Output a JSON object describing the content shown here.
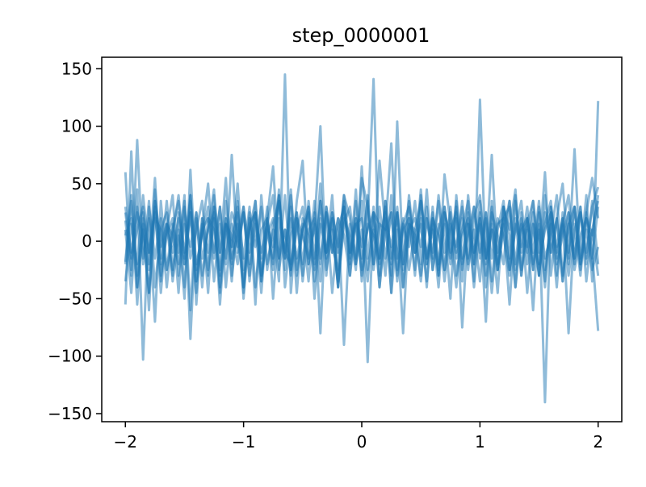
{
  "chart_data": {
    "type": "line",
    "title": "step_0000001",
    "xlabel": "",
    "ylabel": "",
    "xlim": [
      -2.2,
      2.2
    ],
    "ylim": [
      -157,
      160
    ],
    "xticks": [
      -2,
      -1,
      0,
      1,
      2
    ],
    "xtick_labels": [
      "−2",
      "−1",
      "0",
      "1",
      "2"
    ],
    "yticks": [
      -150,
      -100,
      -50,
      0,
      50,
      100,
      150
    ],
    "ytick_labels": [
      "−150",
      "−100",
      "−50",
      "0",
      "50",
      "100",
      "150"
    ],
    "grid": false,
    "legend": "none",
    "line_color": "#1f77b4",
    "line_opacity": 0.5,
    "x": [
      -2.0,
      -1.95,
      -1.9,
      -1.85,
      -1.8,
      -1.75,
      -1.7,
      -1.65,
      -1.6,
      -1.55,
      -1.5,
      -1.45,
      -1.4,
      -1.35,
      -1.3,
      -1.25,
      -1.2,
      -1.15,
      -1.1,
      -1.05,
      -1.0,
      -0.95,
      -0.9,
      -0.85,
      -0.8,
      -0.75,
      -0.7,
      -0.65,
      -0.6,
      -0.55,
      -0.5,
      -0.45,
      -0.4,
      -0.35,
      -0.3,
      -0.25,
      -0.2,
      -0.15,
      -0.1,
      -0.05,
      0.0,
      0.05,
      0.1,
      0.15,
      0.2,
      0.25,
      0.3,
      0.35,
      0.4,
      0.45,
      0.5,
      0.55,
      0.6,
      0.65,
      0.7,
      0.75,
      0.8,
      0.85,
      0.9,
      0.95,
      1.0,
      1.05,
      1.1,
      1.15,
      1.2,
      1.25,
      1.3,
      1.35,
      1.4,
      1.45,
      1.5,
      1.55,
      1.6,
      1.65,
      1.7,
      1.75,
      1.8,
      1.85,
      1.9,
      1.95,
      2.0
    ],
    "series": [
      {
        "values": [
          60,
          -30,
          88,
          -20,
          35,
          -40,
          10,
          25,
          -35,
          5,
          -20,
          40,
          -55,
          20,
          -10,
          30,
          -45,
          15,
          -5,
          50,
          -25,
          10,
          35,
          -30,
          20,
          -15,
          45,
          -40,
          5,
          25,
          -20,
          30,
          -50,
          15,
          -10,
          40,
          -35,
          20,
          5,
          -25,
          65,
          -15,
          30,
          -40,
          10,
          25,
          -30,
          15,
          -5,
          35,
          -20,
          45,
          -25,
          10,
          30,
          -15,
          20,
          -35,
          40,
          -10,
          15,
          -30,
          25,
          5,
          -20,
          35,
          -40,
          10,
          20,
          -25,
          30,
          -15,
          5,
          40,
          -30,
          15,
          -20,
          25,
          -10,
          30,
          47
        ]
      },
      {
        "values": [
          -55,
          78,
          -40,
          25,
          -60,
          45,
          -15,
          35,
          -25,
          10,
          -50,
          62,
          -35,
          20,
          -45,
          30,
          -10,
          55,
          -30,
          15,
          -40,
          25,
          -55,
          40,
          -20,
          10,
          -35,
          145,
          -45,
          20,
          -30,
          35,
          -15,
          50,
          -25,
          10,
          -40,
          30,
          -20,
          45,
          -35,
          15,
          141,
          -30,
          25,
          -45,
          104,
          -20,
          35,
          -10,
          20,
          -40,
          30,
          -25,
          15,
          -50,
          40,
          -15,
          25,
          -35,
          123,
          -20,
          10,
          -45,
          30,
          -15,
          40,
          -30,
          20,
          -10,
          35,
          -25,
          15,
          -40,
          25,
          -20,
          30,
          -15,
          40,
          -35,
          122
        ]
      },
      {
        "values": [
          18,
          -25,
          45,
          -103,
          30,
          -15,
          20,
          -40,
          10,
          35,
          -20,
          25,
          -45,
          15,
          -30,
          40,
          -10,
          20,
          -35,
          25,
          -15,
          30,
          -40,
          10,
          20,
          -25,
          35,
          -15,
          45,
          -30,
          10,
          25,
          -20,
          35,
          -15,
          20,
          -40,
          30,
          -10,
          15,
          -25,
          40,
          -20,
          30,
          -15,
          25,
          -35,
          10,
          20,
          -30,
          40,
          -15,
          25,
          -20,
          30,
          -10,
          35,
          -25,
          15,
          -40,
          20,
          -15,
          30,
          -25,
          10,
          35,
          -20,
          25,
          -45,
          15,
          -30,
          40,
          -10,
          20,
          -35,
          25,
          -15,
          30,
          -20,
          10,
          35
        ]
      },
      {
        "values": [
          -18,
          40,
          -55,
          20,
          -10,
          30,
          -45,
          15,
          5,
          -20,
          35,
          -60,
          25,
          -15,
          10,
          45,
          -30,
          20,
          -5,
          30,
          -50,
          15,
          25,
          -35,
          10,
          -20,
          40,
          -15,
          30,
          -45,
          20,
          5,
          -25,
          35,
          -10,
          20,
          -40,
          15,
          30,
          -20,
          10,
          -35,
          25,
          15,
          -30,
          40,
          -15,
          20,
          -25,
          10,
          35,
          -20,
          15,
          -30,
          25,
          5,
          -40,
          20,
          -15,
          30,
          -10,
          25,
          -35,
          15,
          20,
          -25,
          10,
          35,
          -20,
          15,
          -30,
          25,
          -10,
          20,
          -35,
          15,
          30,
          -20,
          10,
          -25,
          -5
        ]
      },
      {
        "values": [
          30,
          -10,
          25,
          5,
          -45,
          35,
          -20,
          10,
          40,
          -30,
          15,
          -5,
          25,
          -40,
          20,
          10,
          -25,
          35,
          -15,
          5,
          30,
          -35,
          20,
          -10,
          15,
          40,
          -25,
          10,
          -30,
          20,
          5,
          -15,
          35,
          -20,
          25,
          -45,
          10,
          30,
          -15,
          20,
          -5,
          35,
          -25,
          15,
          10,
          -30,
          25,
          -20,
          40,
          -10,
          15,
          -35,
          20,
          5,
          -25,
          30,
          -15,
          10,
          35,
          -20,
          25,
          -40,
          15,
          -10,
          20,
          30,
          -25,
          15,
          -5,
          35,
          -20,
          10,
          25,
          -30,
          15,
          -10,
          30,
          -25,
          20,
          5,
          40
        ]
      },
      {
        "values": [
          -35,
          15,
          -20,
          40,
          -10,
          25,
          -30,
          5,
          20,
          -45,
          30,
          -15,
          10,
          35,
          -25,
          20,
          -40,
          15,
          5,
          -20,
          30,
          -10,
          25,
          -35,
          15,
          -5,
          40,
          -25,
          20,
          -15,
          10,
          30,
          -35,
          20,
          -10,
          25,
          -5,
          35,
          -30,
          15,
          20,
          -25,
          10,
          -15,
          35,
          -20,
          25,
          -40,
          15,
          5,
          -30,
          20,
          -10,
          35,
          -25,
          15,
          -5,
          30,
          -20,
          10,
          -35,
          25,
          -15,
          20,
          5,
          -30,
          35,
          -10,
          20,
          -25,
          15,
          -40,
          30,
          -5,
          20,
          -30,
          10,
          25,
          -15,
          35,
          -20
        ]
      },
      {
        "values": [
          5,
          20,
          -40,
          10,
          -25,
          35,
          -5,
          15,
          -30,
          25,
          -10,
          40,
          -20,
          5,
          30,
          -35,
          15,
          -15,
          25,
          10,
          -45,
          20,
          -5,
          30,
          -25,
          15,
          35,
          -10,
          -20,
          25,
          -35,
          10,
          20,
          -15,
          30,
          -5,
          -25,
          40,
          -10,
          20,
          -30,
          15,
          5,
          -20,
          35,
          -15,
          25,
          -40,
          10,
          20,
          -5,
          30,
          -25,
          15,
          -35,
          10,
          25,
          -20,
          5,
          30,
          -15,
          20,
          -45,
          10,
          35,
          -25,
          15,
          -5,
          30,
          -20,
          10,
          -35,
          25,
          -10,
          15,
          40,
          -25,
          5,
          20,
          -15,
          30
        ]
      },
      {
        "values": [
          -20,
          35,
          -30,
          15,
          -45,
          20,
          10,
          -25,
          5,
          40,
          -15,
          25,
          -35,
          10,
          20,
          -10,
          30,
          -40,
          15,
          -5,
          25,
          -20,
          35,
          -30,
          5,
          20,
          -15,
          40,
          -25,
          10,
          30,
          -20,
          15,
          -35,
          25,
          -10,
          20,
          5,
          -30,
          35,
          -15,
          10,
          25,
          -40,
          20,
          -5,
          30,
          -25,
          15,
          10,
          -35,
          20,
          -15,
          40,
          -10,
          25,
          -30,
          5,
          20,
          -20,
          35,
          -15,
          10,
          -25,
          30,
          5,
          -40,
          20,
          -10,
          25,
          -30,
          15,
          35,
          -20,
          5,
          25,
          -15,
          30,
          -35,
          10,
          -30
        ]
      },
      {
        "values": [
          10,
          -45,
          30,
          -15,
          20,
          -70,
          35,
          -25,
          15,
          -10,
          40,
          -85,
          20,
          -30,
          10,
          25,
          -55,
          15,
          -20,
          35,
          -40,
          10,
          25,
          -15,
          30,
          -50,
          20,
          -10,
          40,
          -25,
          15,
          -35,
          25,
          -80,
          30,
          -10,
          20,
          -90,
          15,
          -20,
          35,
          -105,
          25,
          -15,
          30,
          -45,
          10,
          -80,
          20,
          -25,
          35,
          -15,
          10,
          -40,
          25,
          -20,
          30,
          -75,
          15,
          -10,
          20,
          -70,
          35,
          -25,
          15,
          -55,
          20,
          -30,
          10,
          -60,
          25,
          -140,
          30,
          -15,
          20,
          -80,
          15,
          -30,
          25,
          -10,
          -78
        ]
      },
      {
        "values": [
          25,
          -15,
          10,
          30,
          -20,
          55,
          -35,
          15,
          -10,
          20,
          -40,
          35,
          -25,
          10,
          50,
          -15,
          30,
          -20,
          75,
          -10,
          25,
          -30,
          15,
          -45,
          20,
          65,
          -15,
          10,
          -25,
          35,
          70,
          -20,
          15,
          100,
          -30,
          25,
          -10,
          40,
          20,
          -15,
          55,
          30,
          -20,
          70,
          10,
          85,
          -25,
          15,
          30,
          -10,
          45,
          -20,
          20,
          -30,
          58,
          15,
          -10,
          35,
          -25,
          20,
          40,
          -15,
          75,
          -20,
          30,
          10,
          45,
          -25,
          15,
          35,
          -10,
          60,
          -30,
          20,
          50,
          -15,
          80,
          -20,
          25,
          55,
          20
        ]
      }
    ]
  }
}
